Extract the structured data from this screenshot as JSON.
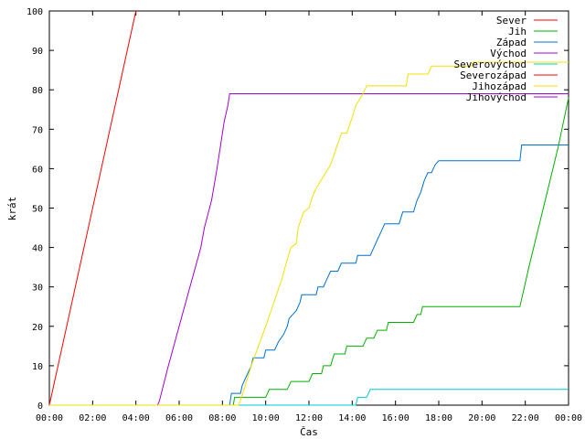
{
  "chart_data": {
    "type": "line",
    "title": "",
    "xlabel": "Čas",
    "ylabel": "krát",
    "xlim": [
      "00:00",
      "24:00"
    ],
    "ylim": [
      0,
      100
    ],
    "x_unit": "hours of day",
    "x_tick_labels": [
      "00:00",
      "02:00",
      "04:00",
      "06:00",
      "08:00",
      "10:00",
      "12:00",
      "14:00",
      "16:00",
      "18:00",
      "20:00",
      "22:00",
      "00:00"
    ],
    "y_tick_labels": [
      "0",
      "10",
      "20",
      "30",
      "40",
      "50",
      "60",
      "70",
      "80",
      "90",
      "100"
    ],
    "y_ticks": [
      0,
      10,
      20,
      30,
      40,
      50,
      60,
      70,
      80,
      90,
      100
    ],
    "grid": false,
    "legend_position": "top-right",
    "series": [
      {
        "name": "Sever",
        "color": "#ff0000",
        "points": [
          [
            "00:00",
            0
          ],
          [
            "04:00",
            100
          ]
        ]
      },
      {
        "name": "Jih",
        "color": "#00b000",
        "points": [
          [
            "00:00",
            0
          ],
          [
            "08:30",
            0
          ],
          [
            "08:34",
            2
          ],
          [
            "10:00",
            2
          ],
          [
            "10:10",
            4
          ],
          [
            "11:00",
            4
          ],
          [
            "11:10",
            6
          ],
          [
            "12:00",
            6
          ],
          [
            "12:10",
            8
          ],
          [
            "12:35",
            8
          ],
          [
            "12:40",
            10
          ],
          [
            "13:00",
            10
          ],
          [
            "13:10",
            13
          ],
          [
            "13:40",
            13
          ],
          [
            "13:45",
            15
          ],
          [
            "14:30",
            15
          ],
          [
            "14:40",
            17
          ],
          [
            "15:00",
            17
          ],
          [
            "15:10",
            19
          ],
          [
            "15:35",
            19
          ],
          [
            "15:40",
            21
          ],
          [
            "16:50",
            21
          ],
          [
            "17:00",
            23
          ],
          [
            "17:10",
            23
          ],
          [
            "17:15",
            25
          ],
          [
            "21:45",
            25
          ],
          [
            "22:10",
            35
          ],
          [
            "22:50",
            50
          ],
          [
            "23:30",
            65
          ],
          [
            "24:00",
            78
          ]
        ]
      },
      {
        "name": "Západ",
        "color": "#0070d0",
        "points": [
          [
            "00:00",
            0
          ],
          [
            "08:20",
            0
          ],
          [
            "08:25",
            3
          ],
          [
            "08:50",
            3
          ],
          [
            "08:55",
            5
          ],
          [
            "09:10",
            8
          ],
          [
            "09:20",
            10
          ],
          [
            "09:25",
            12
          ],
          [
            "09:55",
            12
          ],
          [
            "10:00",
            14
          ],
          [
            "10:25",
            14
          ],
          [
            "10:35",
            16
          ],
          [
            "10:50",
            18
          ],
          [
            "11:00",
            20
          ],
          [
            "11:05",
            22
          ],
          [
            "11:25",
            24
          ],
          [
            "11:35",
            26
          ],
          [
            "11:40",
            28
          ],
          [
            "12:20",
            28
          ],
          [
            "12:25",
            30
          ],
          [
            "12:40",
            30
          ],
          [
            "12:50",
            32
          ],
          [
            "13:00",
            34
          ],
          [
            "13:20",
            34
          ],
          [
            "13:30",
            36
          ],
          [
            "14:10",
            36
          ],
          [
            "14:15",
            38
          ],
          [
            "14:50",
            38
          ],
          [
            "15:00",
            40
          ],
          [
            "15:10",
            42
          ],
          [
            "15:20",
            44
          ],
          [
            "15:30",
            46
          ],
          [
            "16:10",
            46
          ],
          [
            "16:20",
            49
          ],
          [
            "16:50",
            49
          ],
          [
            "17:00",
            52
          ],
          [
            "17:10",
            54
          ],
          [
            "17:20",
            57
          ],
          [
            "17:30",
            59
          ],
          [
            "17:40",
            59
          ],
          [
            "17:50",
            61
          ],
          [
            "18:00",
            62
          ],
          [
            "21:45",
            62
          ],
          [
            "21:50",
            66
          ],
          [
            "24:00",
            66
          ]
        ]
      },
      {
        "name": "Východ",
        "color": "#a000d0",
        "points": [
          [
            "00:00",
            0
          ],
          [
            "05:00",
            0
          ],
          [
            "05:05",
            1
          ],
          [
            "05:30",
            10
          ],
          [
            "06:00",
            20
          ],
          [
            "06:30",
            30
          ],
          [
            "07:00",
            40
          ],
          [
            "07:10",
            45
          ],
          [
            "07:30",
            52
          ],
          [
            "07:45",
            60
          ],
          [
            "08:05",
            72
          ],
          [
            "08:15",
            76
          ],
          [
            "08:20",
            79
          ],
          [
            "24:00",
            79
          ]
        ]
      },
      {
        "name": "Severovýchod",
        "color": "#00c8d0",
        "points": [
          [
            "00:00",
            0
          ],
          [
            "14:10",
            0
          ],
          [
            "14:15",
            2
          ],
          [
            "14:40",
            2
          ],
          [
            "14:50",
            4
          ],
          [
            "24:00",
            4
          ]
        ]
      },
      {
        "name": "Severozápad",
        "color": "#ff0000",
        "points": []
      },
      {
        "name": "Jihozápad",
        "color": "#f0e000",
        "points": [
          [
            "00:00",
            0
          ],
          [
            "08:45",
            0
          ],
          [
            "09:00",
            4
          ],
          [
            "09:20",
            10
          ],
          [
            "09:40",
            15
          ],
          [
            "10:00",
            20
          ],
          [
            "10:15",
            24
          ],
          [
            "10:30",
            28
          ],
          [
            "10:45",
            32
          ],
          [
            "11:00",
            37
          ],
          [
            "11:10",
            40
          ],
          [
            "11:25",
            41
          ],
          [
            "11:30",
            45
          ],
          [
            "11:45",
            49
          ],
          [
            "12:00",
            50
          ],
          [
            "12:10",
            53
          ],
          [
            "12:20",
            55
          ],
          [
            "12:40",
            58
          ],
          [
            "13:00",
            61
          ],
          [
            "13:15",
            65
          ],
          [
            "13:30",
            69
          ],
          [
            "13:45",
            69
          ],
          [
            "14:00",
            73
          ],
          [
            "14:10",
            76
          ],
          [
            "14:30",
            79
          ],
          [
            "14:40",
            81
          ],
          [
            "16:30",
            81
          ],
          [
            "16:35",
            84
          ],
          [
            "17:30",
            84
          ],
          [
            "17:40",
            86
          ],
          [
            "19:30",
            86
          ],
          [
            "19:35",
            87
          ],
          [
            "24:00",
            87
          ]
        ]
      },
      {
        "name": "Jihovýchod",
        "color": "#a000d0",
        "points": []
      }
    ]
  }
}
